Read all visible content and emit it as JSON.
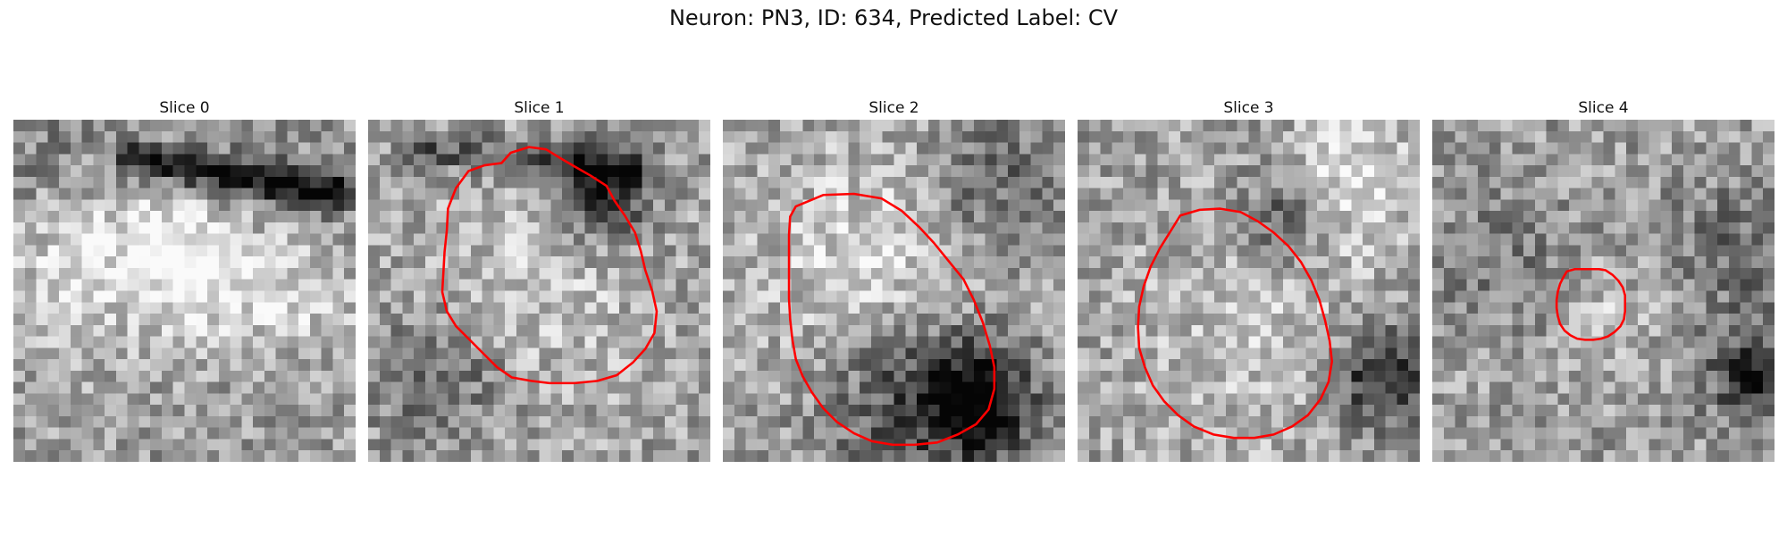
{
  "figure": {
    "title": "Neuron: PN3, ID: 634, Predicted Label: CV"
  },
  "colors": {
    "outline": "#ff0000",
    "background": "#ffffff"
  },
  "panels": [
    {
      "title": "Slice 0",
      "has_outline": false,
      "seed": 11,
      "blobs": [
        [
          3,
          4,
          5,
          -0.25
        ],
        [
          15,
          12,
          4,
          0.35
        ],
        [
          22,
          7,
          5,
          -0.1
        ],
        [
          5,
          9,
          6,
          0.3
        ],
        [
          24,
          14,
          4,
          0.25
        ]
      ],
      "dark_bands": [
        [
          10,
          3,
          28,
          6,
          -0.55
        ]
      ]
    },
    {
      "title": "Slice 1",
      "has_outline": true,
      "seed": 27,
      "blobs": [
        [
          14,
          14,
          8,
          0.15
        ],
        [
          20,
          6,
          3,
          -0.5
        ],
        [
          6,
          22,
          4,
          -0.25
        ]
      ],
      "dark_bands": [
        [
          4,
          2,
          22,
          4,
          -0.3
        ]
      ]
    },
    {
      "title": "Slice 2",
      "has_outline": true,
      "seed": 43,
      "blobs": [
        [
          15,
          13,
          8,
          0.3
        ],
        [
          17,
          23,
          6,
          -0.45
        ],
        [
          22,
          24,
          3,
          -0.55
        ],
        [
          23,
          6,
          5,
          -0.3
        ]
      ],
      "dark_bands": []
    },
    {
      "title": "Slice 3",
      "has_outline": true,
      "seed": 59,
      "blobs": [
        [
          15,
          18,
          8,
          0.15
        ],
        [
          26,
          22,
          3,
          -0.5
        ],
        [
          23,
          5,
          4,
          0.3
        ],
        [
          18,
          8,
          3,
          -0.35
        ]
      ],
      "dark_bands": []
    },
    {
      "title": "Slice 4",
      "has_outline": true,
      "seed": 71,
      "blobs": [
        [
          15,
          17,
          3,
          0.15
        ],
        [
          28,
          22,
          3,
          -0.45
        ],
        [
          5,
          12,
          4,
          -0.15
        ],
        [
          26,
          11,
          4,
          -0.2
        ]
      ],
      "dark_bands": []
    }
  ]
}
